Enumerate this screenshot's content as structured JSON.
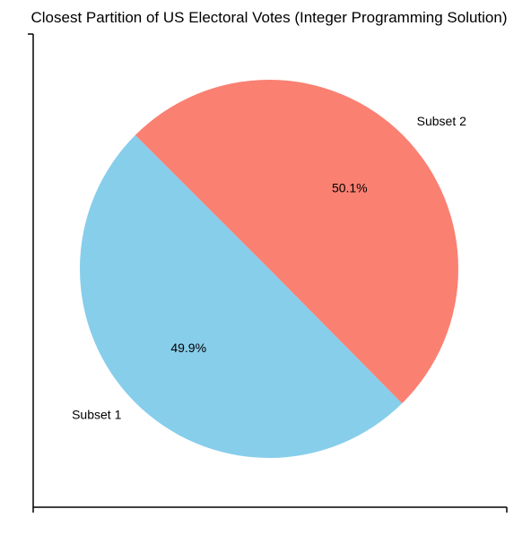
{
  "chart_data": {
    "type": "pie",
    "title": "Closest Partition of US Electoral Votes (Integer Programming Solution)",
    "categories": [
      "Subset 1",
      "Subset 2"
    ],
    "values": [
      49.9,
      50.1
    ],
    "percent_labels": [
      "49.9%",
      "50.1%"
    ],
    "colors": [
      "#87CEEB",
      "#FA8072"
    ],
    "start_angle_deg": 135,
    "direction": "counterclockwise",
    "legend": "none",
    "grid": false
  }
}
